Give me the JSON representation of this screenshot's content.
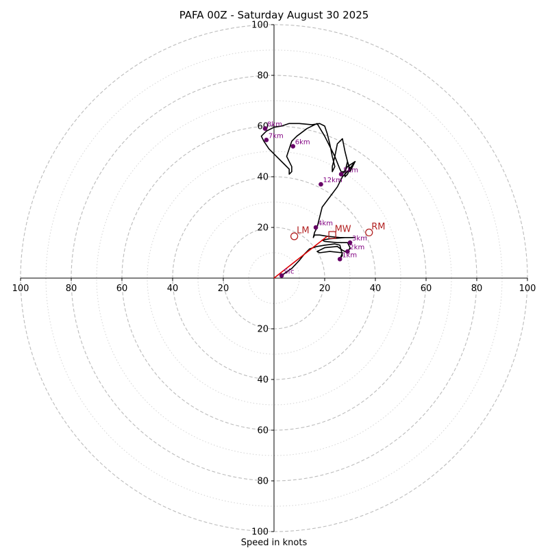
{
  "chart_data": {
    "type": "hodograph",
    "title": "PAFA 00Z - Saturday August 30 2025",
    "xlabel": "Speed in knots",
    "range": 100,
    "major_rings": [
      20,
      40,
      60,
      80,
      100
    ],
    "minor_rings": [
      10,
      30,
      50,
      70,
      90
    ],
    "x_ticks": [
      {
        "v": -100,
        "label": "100"
      },
      {
        "v": -80,
        "label": "80"
      },
      {
        "v": -60,
        "label": "60"
      },
      {
        "v": -40,
        "label": "40"
      },
      {
        "v": -20,
        "label": "20"
      },
      {
        "v": 20,
        "label": "20"
      },
      {
        "v": 40,
        "label": "40"
      },
      {
        "v": 60,
        "label": "60"
      },
      {
        "v": 80,
        "label": "80"
      },
      {
        "v": 100,
        "label": "100"
      }
    ],
    "y_ticks": [
      {
        "v": 100,
        "label": "100"
      },
      {
        "v": 80,
        "label": "80"
      },
      {
        "v": 60,
        "label": "60"
      },
      {
        "v": 40,
        "label": "40"
      },
      {
        "v": 20,
        "label": "20"
      },
      {
        "v": -20,
        "label": "20"
      },
      {
        "v": -40,
        "label": "40"
      },
      {
        "v": -60,
        "label": "60"
      },
      {
        "v": -80,
        "label": "80"
      },
      {
        "v": -100,
        "label": "100"
      }
    ],
    "wind_profile": [
      [
        3,
        1
      ],
      [
        5,
        2.5
      ],
      [
        7,
        3.8
      ],
      [
        10,
        7
      ],
      [
        12,
        9.5
      ],
      [
        14,
        11.5
      ],
      [
        17,
        12.5
      ],
      [
        20,
        13
      ],
      [
        24,
        13.5
      ],
      [
        26,
        13
      ],
      [
        27,
        9
      ],
      [
        26,
        7.5
      ],
      [
        27,
        10
      ],
      [
        22,
        10.5
      ],
      [
        18,
        10
      ],
      [
        17,
        10.5
      ],
      [
        18,
        11
      ],
      [
        20,
        12
      ],
      [
        25,
        12.5
      ],
      [
        27,
        11
      ],
      [
        29,
        10
      ],
      [
        30,
        12
      ],
      [
        29,
        14
      ],
      [
        25,
        14
      ],
      [
        20,
        14.5
      ],
      [
        19,
        15
      ],
      [
        22,
        15.5
      ],
      [
        28,
        16
      ],
      [
        32,
        16
      ],
      [
        26,
        16
      ],
      [
        21,
        16.5
      ],
      [
        18,
        17
      ],
      [
        16,
        17
      ],
      [
        15.5,
        16
      ],
      [
        16,
        18
      ],
      [
        17,
        20
      ],
      [
        18,
        24
      ],
      [
        19,
        28
      ],
      [
        22,
        32
      ],
      [
        25,
        36
      ],
      [
        27,
        40
      ],
      [
        29,
        42
      ],
      [
        32,
        46
      ],
      [
        29,
        44
      ],
      [
        27,
        41
      ],
      [
        26,
        43
      ],
      [
        24,
        48
      ],
      [
        22,
        52
      ],
      [
        20,
        56
      ],
      [
        17,
        61
      ],
      [
        13,
        59
      ],
      [
        9,
        56
      ],
      [
        7,
        54
      ],
      [
        6,
        51
      ],
      [
        5,
        48
      ],
      [
        6,
        46
      ],
      [
        7,
        44
      ],
      [
        7,
        42
      ],
      [
        6,
        41
      ],
      [
        6,
        43
      ],
      [
        4,
        45
      ],
      [
        1,
        48
      ],
      [
        -2,
        51
      ],
      [
        -4,
        54
      ],
      [
        -5,
        56
      ],
      [
        -4,
        57
      ],
      [
        -3,
        58
      ],
      [
        0,
        59.5
      ],
      [
        3,
        60
      ],
      [
        6,
        61
      ],
      [
        10,
        61
      ],
      [
        15,
        60.5
      ],
      [
        18,
        61
      ],
      [
        20,
        60
      ],
      [
        21,
        57
      ],
      [
        22,
        53
      ],
      [
        23,
        48
      ],
      [
        24,
        44
      ],
      [
        23,
        42
      ],
      [
        23,
        44
      ],
      [
        24,
        48
      ],
      [
        25,
        53
      ],
      [
        26,
        54
      ],
      [
        27,
        55
      ],
      [
        28,
        50
      ],
      [
        29,
        46
      ],
      [
        30,
        43
      ],
      [
        29,
        41
      ],
      [
        28,
        40
      ],
      [
        28,
        42
      ],
      [
        29,
        46
      ],
      [
        30,
        42
      ],
      [
        31,
        44
      ],
      [
        32,
        46
      ],
      [
        31,
        44
      ],
      [
        29,
        42
      ],
      [
        27,
        42
      ],
      [
        26.5,
        41
      ]
    ],
    "height_markers": [
      {
        "label": "Sfc",
        "u": 3,
        "v": 1
      },
      {
        "label": "1km",
        "u": 26,
        "v": 7.5
      },
      {
        "label": "2km",
        "u": 29,
        "v": 10.5
      },
      {
        "label": "3km",
        "u": 30,
        "v": 14
      },
      {
        "label": "4km",
        "u": 16.5,
        "v": 20
      },
      {
        "label": "12km",
        "u": 18.5,
        "v": 37
      },
      {
        "label": "5km",
        "u": 26.5,
        "v": 41
      },
      {
        "label": "6km",
        "u": 7.5,
        "v": 52
      },
      {
        "label": "7km",
        "u": -3,
        "v": 54.5
      },
      {
        "label": "8km",
        "u": -3.5,
        "v": 59
      }
    ],
    "shear_vector": {
      "from": [
        0,
        0
      ],
      "to": [
        21,
        16.5
      ]
    },
    "storm_motions": [
      {
        "label": "LM",
        "u": 8,
        "v": 16.5,
        "shape": "circle"
      },
      {
        "label": "MW",
        "u": 23,
        "v": 17,
        "shape": "square"
      },
      {
        "label": "RM",
        "u": 37.5,
        "v": 18,
        "shape": "circle"
      }
    ],
    "colors": {
      "profile": "#000000",
      "marker": "#660066",
      "marker_label": "#800080",
      "shear": "#dd0000",
      "storm": "#b22222",
      "ring": "#bbbbbb",
      "axis": "#000000"
    }
  }
}
